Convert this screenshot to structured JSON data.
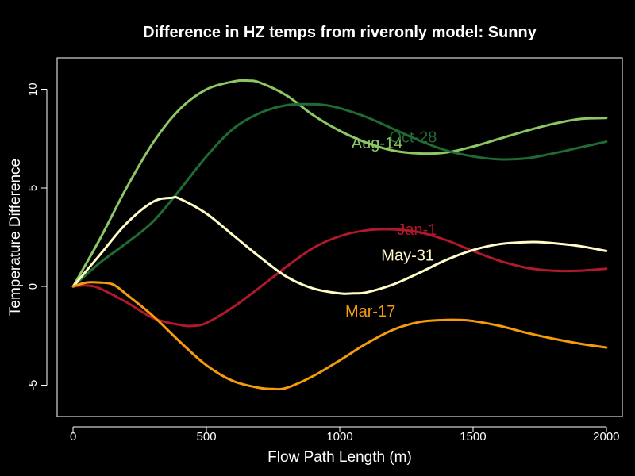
{
  "chart_data": {
    "type": "line",
    "title": "Difference in HZ temps from riveronly model: Sunny",
    "xlabel": "Flow Path Length (m)",
    "ylabel": "Temperature Difference",
    "xlim": [
      -60,
      2060
    ],
    "ylim": [
      -6.6,
      11.6
    ],
    "x_ticks": [
      0,
      500,
      1000,
      1500,
      2000
    ],
    "y_ticks": [
      -5,
      0,
      5,
      10
    ],
    "x_tick_labels": [
      "0",
      "500",
      "1000",
      "1500",
      "2000"
    ],
    "y_tick_labels": [
      "-5",
      "0",
      "5",
      "10"
    ],
    "grid": false,
    "legend": "none",
    "background": "#000000",
    "foreground": "#ffffff",
    "series": [
      {
        "name": "Aug-14",
        "color": "#8cc665",
        "label_at": [
          1140,
          7.3
        ],
        "x": [
          0,
          100,
          200,
          300,
          400,
          500,
          600,
          650,
          700,
          800,
          900,
          1000,
          1100,
          1200,
          1300,
          1400,
          1500,
          1600,
          1700,
          1800,
          1900,
          2000
        ],
        "y": [
          0,
          2.4,
          5.0,
          7.3,
          9.0,
          10.0,
          10.4,
          10.45,
          10.35,
          9.7,
          8.7,
          7.9,
          7.3,
          6.9,
          6.75,
          6.8,
          7.1,
          7.5,
          7.9,
          8.25,
          8.5,
          8.55
        ]
      },
      {
        "name": "Oct-28",
        "color": "#1e6b33",
        "label_at": [
          1275,
          7.6
        ],
        "x": [
          0,
          100,
          200,
          300,
          400,
          500,
          600,
          700,
          800,
          900,
          950,
          1000,
          1100,
          1200,
          1300,
          1400,
          1500,
          1600,
          1700,
          1800,
          1900,
          2000
        ],
        "y": [
          0,
          1.2,
          2.2,
          3.3,
          4.9,
          6.6,
          8.0,
          8.8,
          9.2,
          9.25,
          9.2,
          9.05,
          8.6,
          8.0,
          7.4,
          6.9,
          6.6,
          6.45,
          6.5,
          6.75,
          7.05,
          7.35
        ]
      },
      {
        "name": "Jan-1",
        "color": "#b0192b",
        "label_at": [
          1290,
          2.9
        ],
        "x": [
          0,
          50,
          100,
          200,
          300,
          400,
          450,
          500,
          600,
          700,
          800,
          900,
          1000,
          1100,
          1200,
          1300,
          1400,
          1500,
          1600,
          1700,
          1800,
          1900,
          2000
        ],
        "y": [
          0,
          0.05,
          -0.1,
          -0.8,
          -1.6,
          -1.95,
          -2.0,
          -1.85,
          -1.05,
          -0.05,
          1.0,
          1.95,
          2.55,
          2.85,
          2.9,
          2.75,
          2.35,
          1.8,
          1.3,
          0.95,
          0.8,
          0.8,
          0.9
        ]
      },
      {
        "name": "May-31",
        "color": "#fffcc6",
        "label_at": [
          1255,
          1.6
        ],
        "x": [
          0,
          100,
          200,
          300,
          370,
          400,
          500,
          600,
          700,
          800,
          900,
          1000,
          1050,
          1100,
          1200,
          1300,
          1400,
          1500,
          1600,
          1700,
          1750,
          1800,
          1900,
          2000
        ],
        "y": [
          0,
          1.6,
          3.2,
          4.3,
          4.5,
          4.45,
          3.7,
          2.6,
          1.5,
          0.5,
          -0.1,
          -0.35,
          -0.35,
          -0.3,
          0.1,
          0.7,
          1.35,
          1.85,
          2.15,
          2.25,
          2.25,
          2.2,
          2.05,
          1.8
        ]
      },
      {
        "name": "Mar-17",
        "color": "#f59b0c",
        "label_at": [
          1115,
          -1.25
        ],
        "x": [
          0,
          50,
          100,
          150,
          200,
          300,
          400,
          500,
          600,
          700,
          750,
          800,
          900,
          1000,
          1100,
          1200,
          1300,
          1400,
          1450,
          1500,
          1600,
          1700,
          1800,
          1900,
          2000
        ],
        "y": [
          0,
          0.2,
          0.2,
          0.1,
          -0.4,
          -1.5,
          -2.8,
          -4.0,
          -4.8,
          -5.15,
          -5.2,
          -5.15,
          -4.55,
          -3.75,
          -2.9,
          -2.2,
          -1.8,
          -1.7,
          -1.7,
          -1.75,
          -2.0,
          -2.35,
          -2.65,
          -2.9,
          -3.1
        ]
      }
    ]
  }
}
